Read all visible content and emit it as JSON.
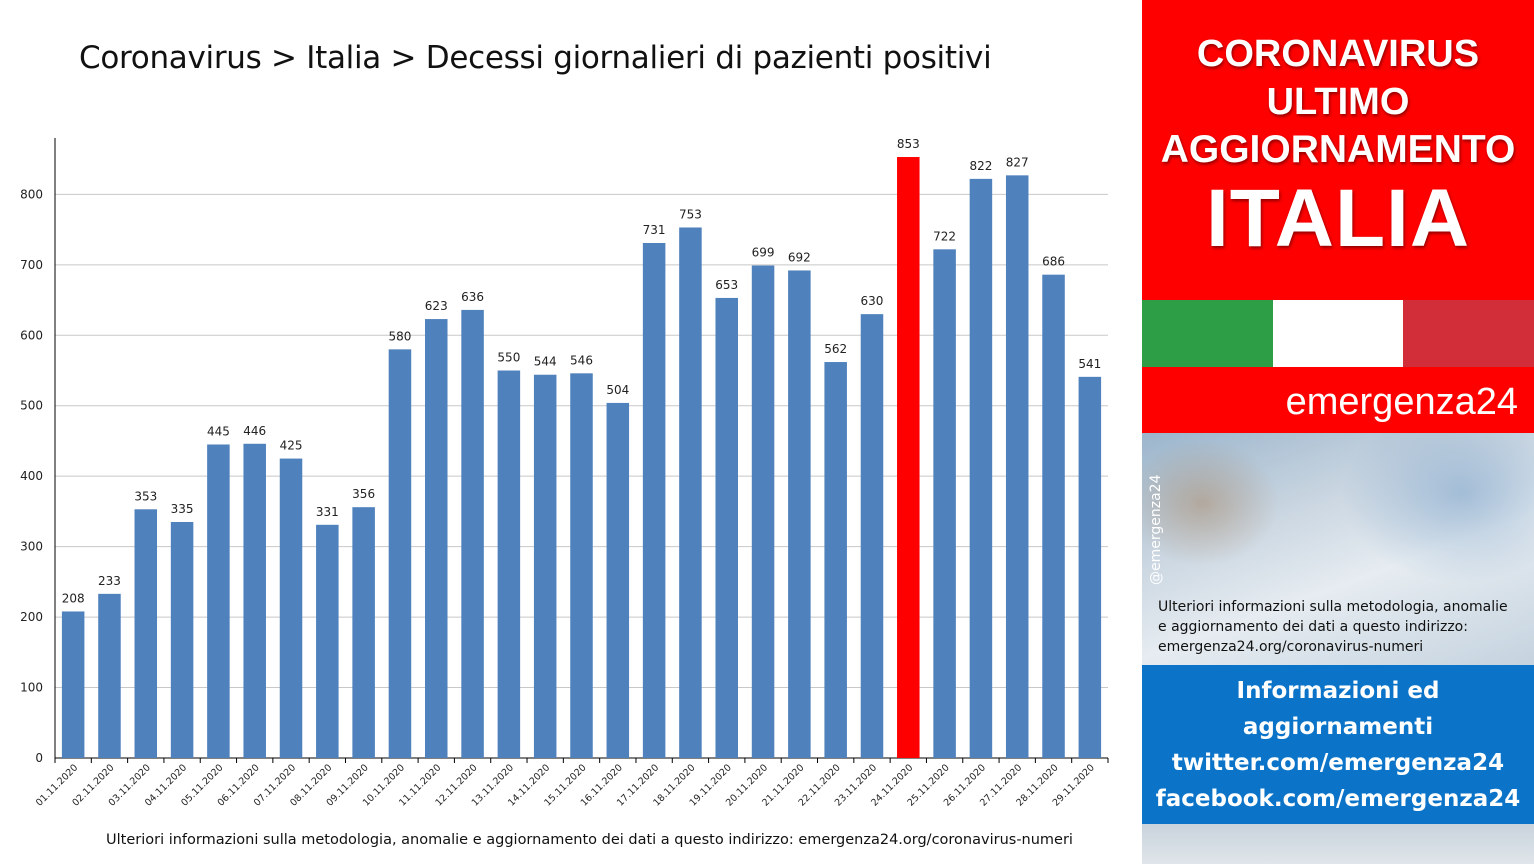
{
  "title": "Coronavirus > Italia > Decessi giornalieri di pazienti positivi",
  "footnote": "Ulteriori informazioni sulla metodologia, anomalie e aggiornamento dei dati a questo indirizzo: emergenza24.org/coronavirus-numeri",
  "colors": {
    "bar": "#4f81bd",
    "highlight": "#ff0000",
    "grid": "#c8c8c8",
    "axis": "#000000"
  },
  "chart_data": {
    "type": "bar",
    "categories": [
      "01.11.2020",
      "02.11.2020",
      "03.11.2020",
      "04.11.2020",
      "05.11.2020",
      "06.11.2020",
      "07.11.2020",
      "08.11.2020",
      "09.11.2020",
      "10.11.2020",
      "11.11.2020",
      "12.11.2020",
      "13.11.2020",
      "14.11.2020",
      "15.11.2020",
      "16.11.2020",
      "17.11.2020",
      "18.11.2020",
      "19.11.2020",
      "20.11.2020",
      "21.11.2020",
      "22.11.2020",
      "23.11.2020",
      "24.11.2020",
      "25.11.2020",
      "26.11.2020",
      "27.11.2020",
      "28.11.2020",
      "29.11.2020"
    ],
    "values": [
      208,
      233,
      353,
      335,
      445,
      446,
      425,
      331,
      356,
      580,
      623,
      636,
      550,
      544,
      546,
      504,
      731,
      753,
      653,
      699,
      692,
      562,
      630,
      853,
      722,
      822,
      827,
      686,
      541
    ],
    "highlight_category": "24.11.2020",
    "ylim": [
      0,
      880
    ],
    "yticks": [
      0,
      100,
      200,
      300,
      400,
      500,
      600,
      700,
      800
    ],
    "grid": true,
    "legend": "none",
    "title": "Coronavirus > Italia > Decessi giornalieri di pazienti positivi",
    "xlabel": "",
    "ylabel": ""
  },
  "panel": {
    "headline_lines": [
      "CORONAVIRUS",
      "ULTIMO",
      "AGGIORNAMENTO",
      "ITALIA"
    ],
    "flag_colors": [
      "#2e9e46",
      "#ffffff",
      "#d12e3a"
    ],
    "brand": "emergenza24",
    "handle": "@emergenza24",
    "info_lines": [
      "Ulteriori informazioni sulla metodologia, anomalie",
      "e aggiornamento dei dati a questo indirizzo:",
      "emergenza24.org/coronavirus-numeri"
    ],
    "social_lines": [
      "Informazioni ed",
      "aggiornamenti",
      "twitter.com/emergenza24",
      "facebook.com/emergenza24"
    ]
  }
}
